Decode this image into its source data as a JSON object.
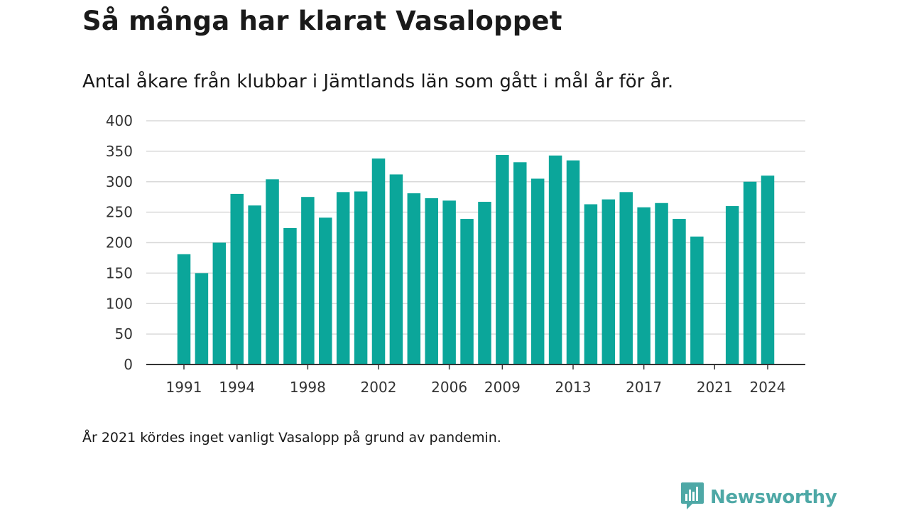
{
  "header": {
    "title": "Så många har klarat Vasaloppet",
    "subtitle": "Antal åkare från klubbar i Jämtlands län som gått i mål år för år."
  },
  "footer": {
    "note": "År 2021 kördes inget vanligt Vasalopp på grund av pandemin.",
    "brand": "Newsworthy",
    "brand_icon": "bar-chart-speech-bubble-icon"
  },
  "colors": {
    "bar": "#0ba69a",
    "grid": "#d9d9d9",
    "axis": "#333333",
    "brand": "#4ea8a6"
  },
  "chart_data": {
    "type": "bar",
    "title": "Så många har klarat Vasaloppet",
    "subtitle": "Antal åkare från klubbar i Jämtlands län som gått i mål år för år.",
    "xlabel": "",
    "ylabel": "",
    "ylim": [
      0,
      400
    ],
    "yticks": [
      0,
      50,
      100,
      150,
      200,
      250,
      300,
      350,
      400
    ],
    "xtick_labels": [
      "1991",
      "1994",
      "1998",
      "2002",
      "2006",
      "2009",
      "2013",
      "2017",
      "2021",
      "2024"
    ],
    "grid": true,
    "categories": [
      "1991",
      "1992",
      "1993",
      "1994",
      "1995",
      "1996",
      "1997",
      "1998",
      "1999",
      "2000",
      "2001",
      "2002",
      "2003",
      "2004",
      "2005",
      "2006",
      "2007",
      "2008",
      "2009",
      "2010",
      "2011",
      "2012",
      "2013",
      "2014",
      "2015",
      "2016",
      "2017",
      "2018",
      "2019",
      "2020",
      "2021",
      "2022",
      "2023",
      "2024"
    ],
    "values": [
      181,
      150,
      200,
      280,
      261,
      304,
      224,
      275,
      241,
      283,
      284,
      338,
      312,
      281,
      273,
      269,
      239,
      267,
      344,
      332,
      305,
      343,
      335,
      263,
      271,
      283,
      258,
      265,
      239,
      210,
      null,
      260,
      300,
      310
    ]
  }
}
